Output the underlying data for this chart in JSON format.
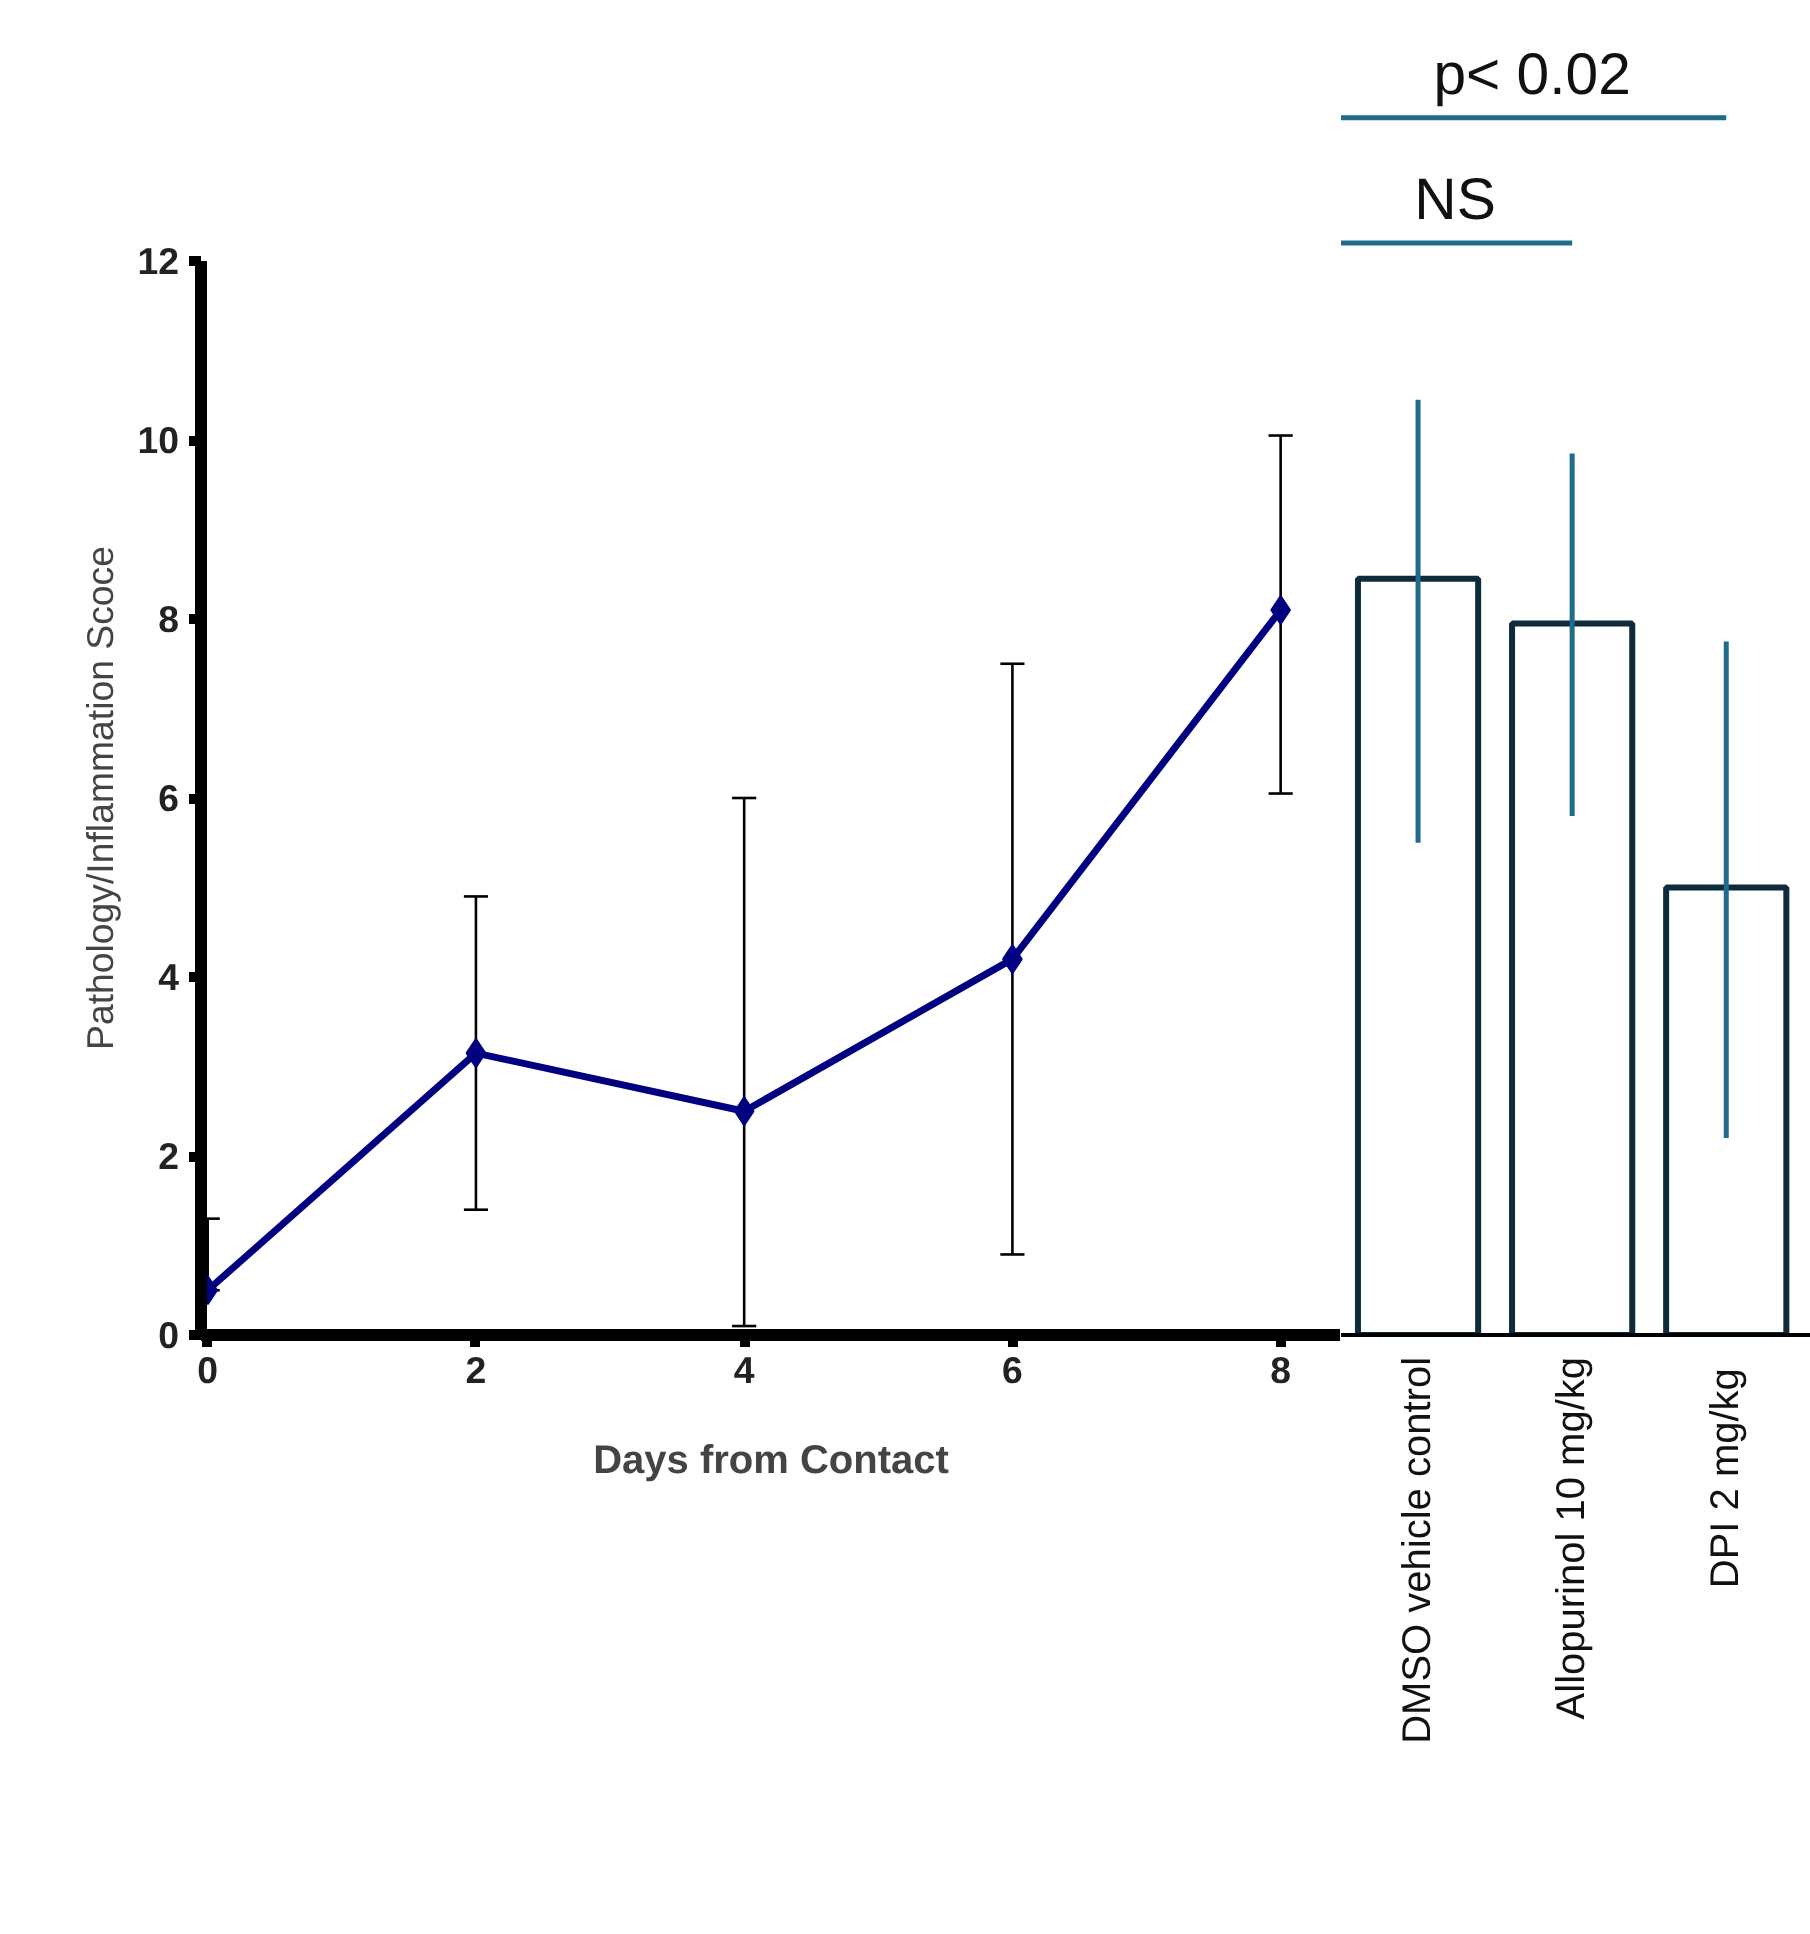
{
  "chart_data": [
    {
      "type": "line",
      "ylabel": "Pathology/Inflammation Scoce",
      "xlabel": "Days from Contact",
      "x": [
        0,
        2,
        4,
        6,
        8
      ],
      "xlim": [
        -0.05,
        8.45
      ],
      "xticks": [
        0,
        2,
        4,
        6,
        8
      ],
      "ylim": [
        0,
        12
      ],
      "yticks": [
        0,
        2,
        4,
        6,
        8,
        10,
        12
      ],
      "marker": "diamond",
      "line_style": "solid",
      "grid": false,
      "series": [
        {
          "color": "#000080",
          "values": [
            0.5,
            3.15,
            2.5,
            4.2,
            8.1
          ],
          "errors": [
            [
              0.5,
              1.3
            ],
            [
              1.4,
              4.9
            ],
            [
              0.1,
              6.0
            ],
            [
              0.9,
              7.5
            ],
            [
              6.05,
              10.05
            ]
          ]
        }
      ]
    },
    {
      "type": "bar",
      "categories": [
        "DMSO vehicle control",
        "Allopurinol 10 mg/kg",
        "DPI  2 mg/kg"
      ],
      "ylim": [
        0,
        12
      ],
      "tick_labels": "x",
      "grid": false,
      "series": [
        {
          "color": "#0d2b3a",
          "values": [
            8.45,
            7.95,
            5.0
          ],
          "errors": [
            [
              5.5,
              10.45
            ],
            [
              5.8,
              9.85
            ],
            [
              2.2,
              7.75
            ]
          ]
        }
      ],
      "annotations": [
        "NS",
        "p< 0.02"
      ]
    }
  ]
}
